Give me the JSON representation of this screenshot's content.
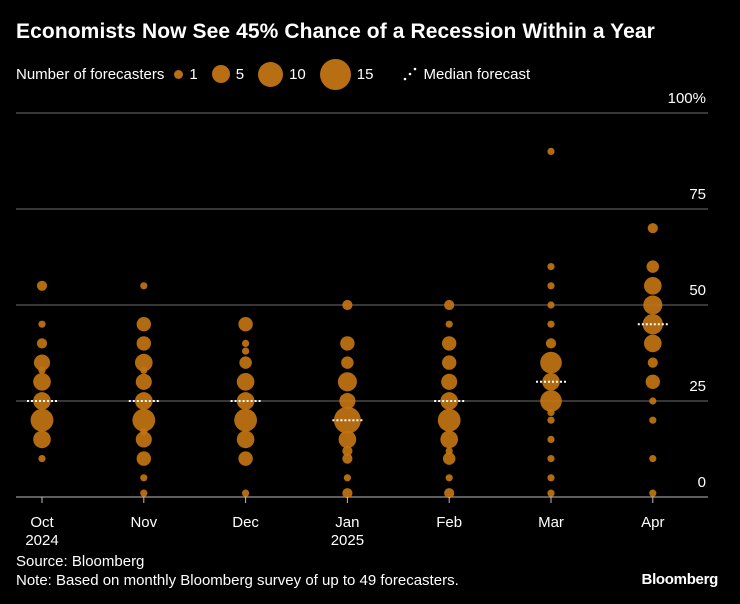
{
  "chart_data": {
    "type": "scatter",
    "title": "Economists Now See 45% Chance of a Recession Within a Year",
    "legend": {
      "size_title": "Number of forecasters",
      "sizes": [
        {
          "label": "1",
          "count": 1
        },
        {
          "label": "5",
          "count": 5
        },
        {
          "label": "10",
          "count": 10
        },
        {
          "label": "15",
          "count": 15
        }
      ],
      "median_label": "Median forecast"
    },
    "y_axis": {
      "min": 0,
      "max": 100,
      "ticks": [
        {
          "value": 0,
          "label": "0"
        },
        {
          "value": 25,
          "label": "25"
        },
        {
          "value": 50,
          "label": "50"
        },
        {
          "value": 75,
          "label": "75"
        },
        {
          "value": 100,
          "label": "100%"
        }
      ]
    },
    "categories": [
      {
        "label": "Oct",
        "sublabel": "2024"
      },
      {
        "label": "Nov",
        "sublabel": ""
      },
      {
        "label": "Dec",
        "sublabel": ""
      },
      {
        "label": "Jan",
        "sublabel": "2025"
      },
      {
        "label": "Feb",
        "sublabel": ""
      },
      {
        "label": "Mar",
        "sublabel": ""
      },
      {
        "label": "Apr",
        "sublabel": ""
      }
    ],
    "median": [
      25,
      25,
      25,
      20,
      25,
      30,
      45
    ],
    "series": [
      {
        "name": "Oct 2024",
        "points": [
          [
            10,
            1
          ],
          [
            15,
            6
          ],
          [
            20,
            10
          ],
          [
            25,
            6
          ],
          [
            30,
            6
          ],
          [
            33,
            1
          ],
          [
            35,
            5
          ],
          [
            40,
            2
          ],
          [
            45,
            1
          ],
          [
            55,
            2
          ]
        ]
      },
      {
        "name": "Nov",
        "points": [
          [
            1,
            1
          ],
          [
            5,
            1
          ],
          [
            10,
            4
          ],
          [
            15,
            5
          ],
          [
            17,
            1
          ],
          [
            20,
            10
          ],
          [
            25,
            6
          ],
          [
            30,
            5
          ],
          [
            33,
            1
          ],
          [
            35,
            6
          ],
          [
            40,
            4
          ],
          [
            45,
            4
          ],
          [
            55,
            1
          ]
        ]
      },
      {
        "name": "Dec",
        "points": [
          [
            1,
            1
          ],
          [
            10,
            4
          ],
          [
            15,
            6
          ],
          [
            20,
            10
          ],
          [
            25,
            6
          ],
          [
            30,
            6
          ],
          [
            35,
            3
          ],
          [
            38,
            1
          ],
          [
            40,
            1
          ],
          [
            45,
            4
          ]
        ]
      },
      {
        "name": "Jan 2025",
        "points": [
          [
            1,
            2
          ],
          [
            5,
            1
          ],
          [
            10,
            2
          ],
          [
            12,
            2
          ],
          [
            15,
            6
          ],
          [
            20,
            14
          ],
          [
            25,
            5
          ],
          [
            30,
            7
          ],
          [
            35,
            3
          ],
          [
            40,
            4
          ],
          [
            50,
            2
          ]
        ]
      },
      {
        "name": "Feb",
        "points": [
          [
            1,
            2
          ],
          [
            5,
            1
          ],
          [
            10,
            3
          ],
          [
            12,
            1
          ],
          [
            15,
            6
          ],
          [
            20,
            10
          ],
          [
            25,
            6
          ],
          [
            30,
            5
          ],
          [
            35,
            4
          ],
          [
            40,
            4
          ],
          [
            45,
            1
          ],
          [
            50,
            2
          ]
        ]
      },
      {
        "name": "Mar",
        "points": [
          [
            1,
            1
          ],
          [
            5,
            1
          ],
          [
            10,
            1
          ],
          [
            15,
            1
          ],
          [
            20,
            1
          ],
          [
            22,
            1
          ],
          [
            25,
            9
          ],
          [
            30,
            6
          ],
          [
            35,
            9
          ],
          [
            40,
            2
          ],
          [
            45,
            1
          ],
          [
            50,
            1
          ],
          [
            55,
            1
          ],
          [
            60,
            1
          ],
          [
            90,
            1
          ]
        ]
      },
      {
        "name": "Apr",
        "points": [
          [
            1,
            1
          ],
          [
            10,
            1
          ],
          [
            20,
            1
          ],
          [
            25,
            1
          ],
          [
            30,
            4
          ],
          [
            35,
            2
          ],
          [
            40,
            6
          ],
          [
            45,
            8
          ],
          [
            50,
            7
          ],
          [
            55,
            6
          ],
          [
            60,
            3
          ],
          [
            70,
            2
          ]
        ]
      }
    ]
  },
  "footer": {
    "source": "Source: Bloomberg",
    "note": "Note: Based on monthly Bloomberg survey of up to 49 forecasters.",
    "brand": "Bloomberg"
  },
  "colors": {
    "bubble": "#c27414",
    "median": "#ffffff",
    "grid": "#6e6e6e",
    "background": "#000000"
  }
}
